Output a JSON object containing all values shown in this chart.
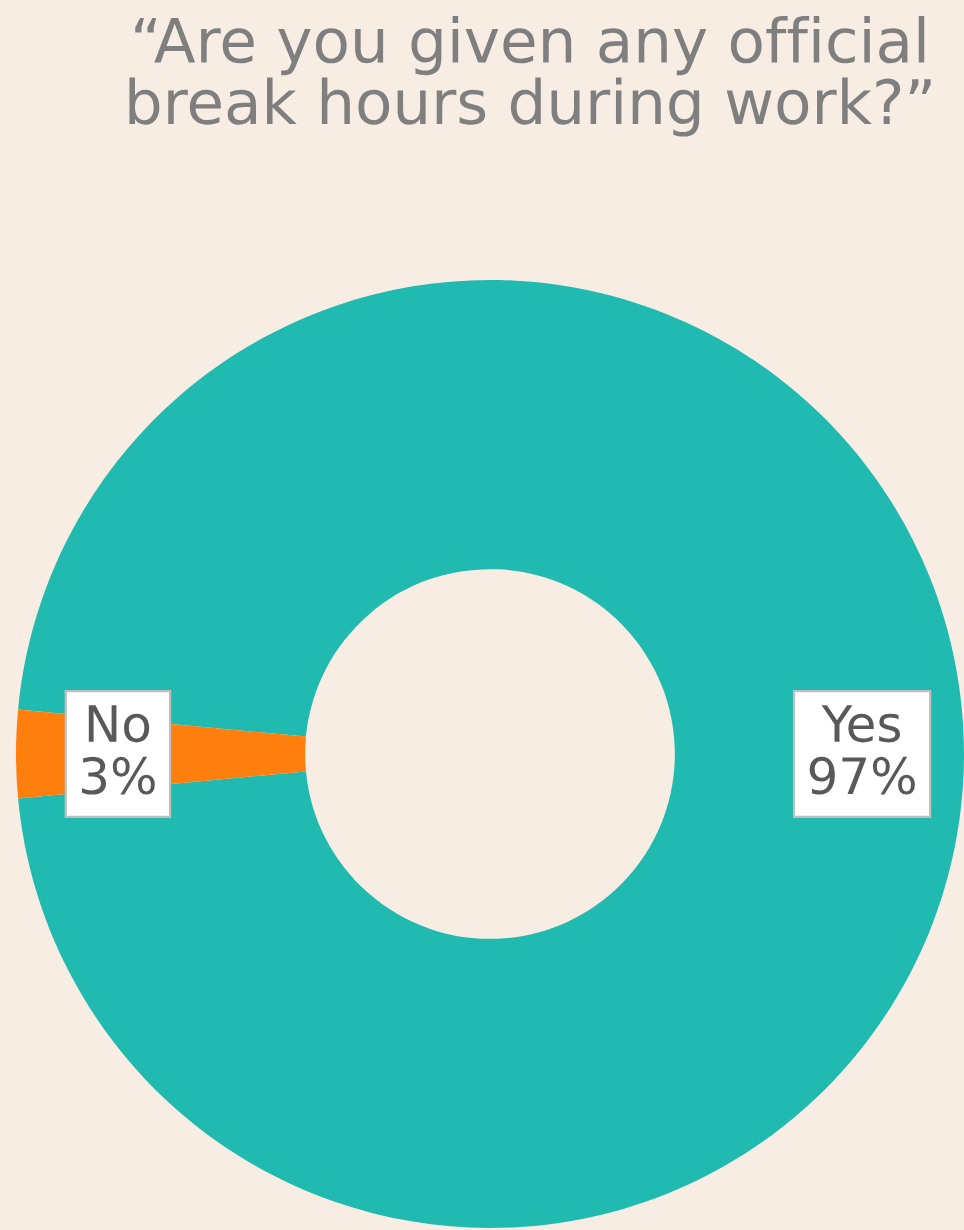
{
  "chart_data": {
    "type": "donut",
    "title": "“Are you given any official break hours during work?”",
    "categories": [
      "Yes",
      "No"
    ],
    "values": [
      97,
      3
    ],
    "colors": [
      "#20bab0",
      "#ff7f0e"
    ],
    "value_labels": [
      "97%",
      "3%"
    ],
    "legend": false
  }
}
